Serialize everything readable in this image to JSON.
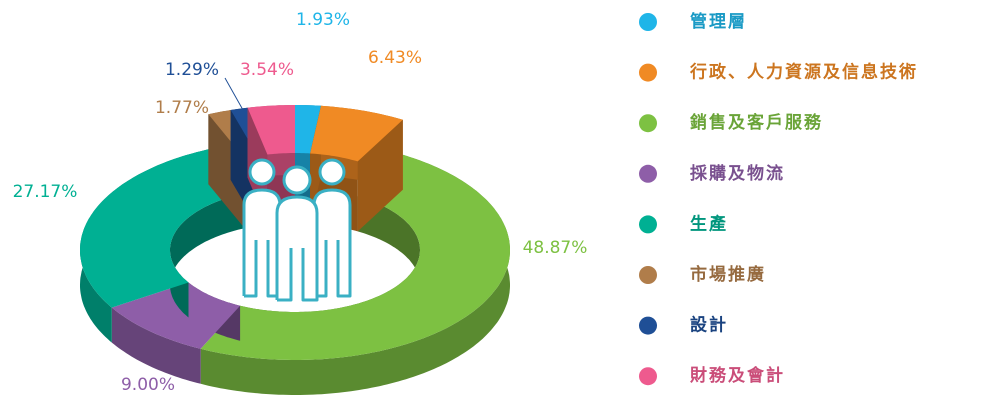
{
  "chart_data": {
    "type": "pie",
    "categories": [
      "管理層",
      "行政、人力資源及信息技術",
      "銷售及客戶服務",
      "採購及物流",
      "生產",
      "市場推廣",
      "設計",
      "財務及會計"
    ],
    "values": [
      1.93,
      6.43,
      48.87,
      9.0,
      27.17,
      1.77,
      1.29,
      3.54
    ],
    "value_labels": [
      "1.93%",
      "6.43%",
      "48.87%",
      "9.00%",
      "27.17%",
      "1.77%",
      "1.29%",
      "3.54%"
    ],
    "colors": [
      "#1fb5e8",
      "#f08a24",
      "#7dc142",
      "#8e5ea8",
      "#00b093",
      "#b07d4a",
      "#1f4f96",
      "#ee5a8e"
    ],
    "legend": "right"
  }
}
